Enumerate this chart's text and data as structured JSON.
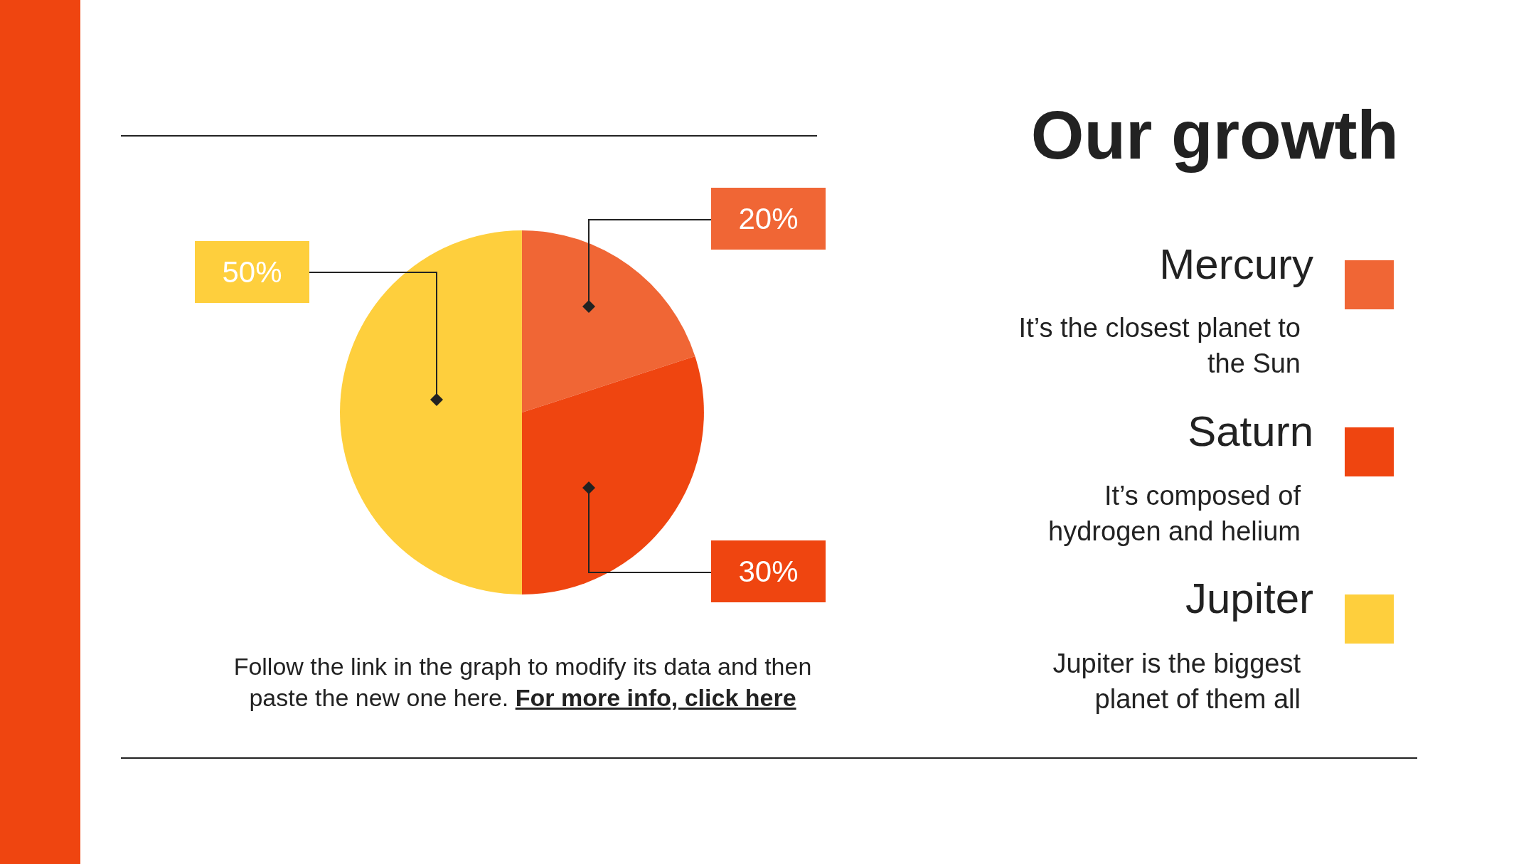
{
  "chart_data": {
    "type": "pie",
    "title": "Our growth",
    "categories": [
      "Mercury",
      "Saturn",
      "Jupiter"
    ],
    "values": [
      20,
      30,
      50
    ],
    "colors": [
      "#f06635",
      "#ef4510",
      "#fecf3d"
    ],
    "value_labels": [
      "20%",
      "30%",
      "50%"
    ],
    "legend": "right",
    "annotations": [
      "It’s the closest planet to the Sun",
      "It’s composed of hydrogen and helium",
      "Jupiter is the biggest planet of them all",
      "Follow the link in the graph to modify its data and then paste the new one here.",
      "For more info, click here"
    ]
  }
}
